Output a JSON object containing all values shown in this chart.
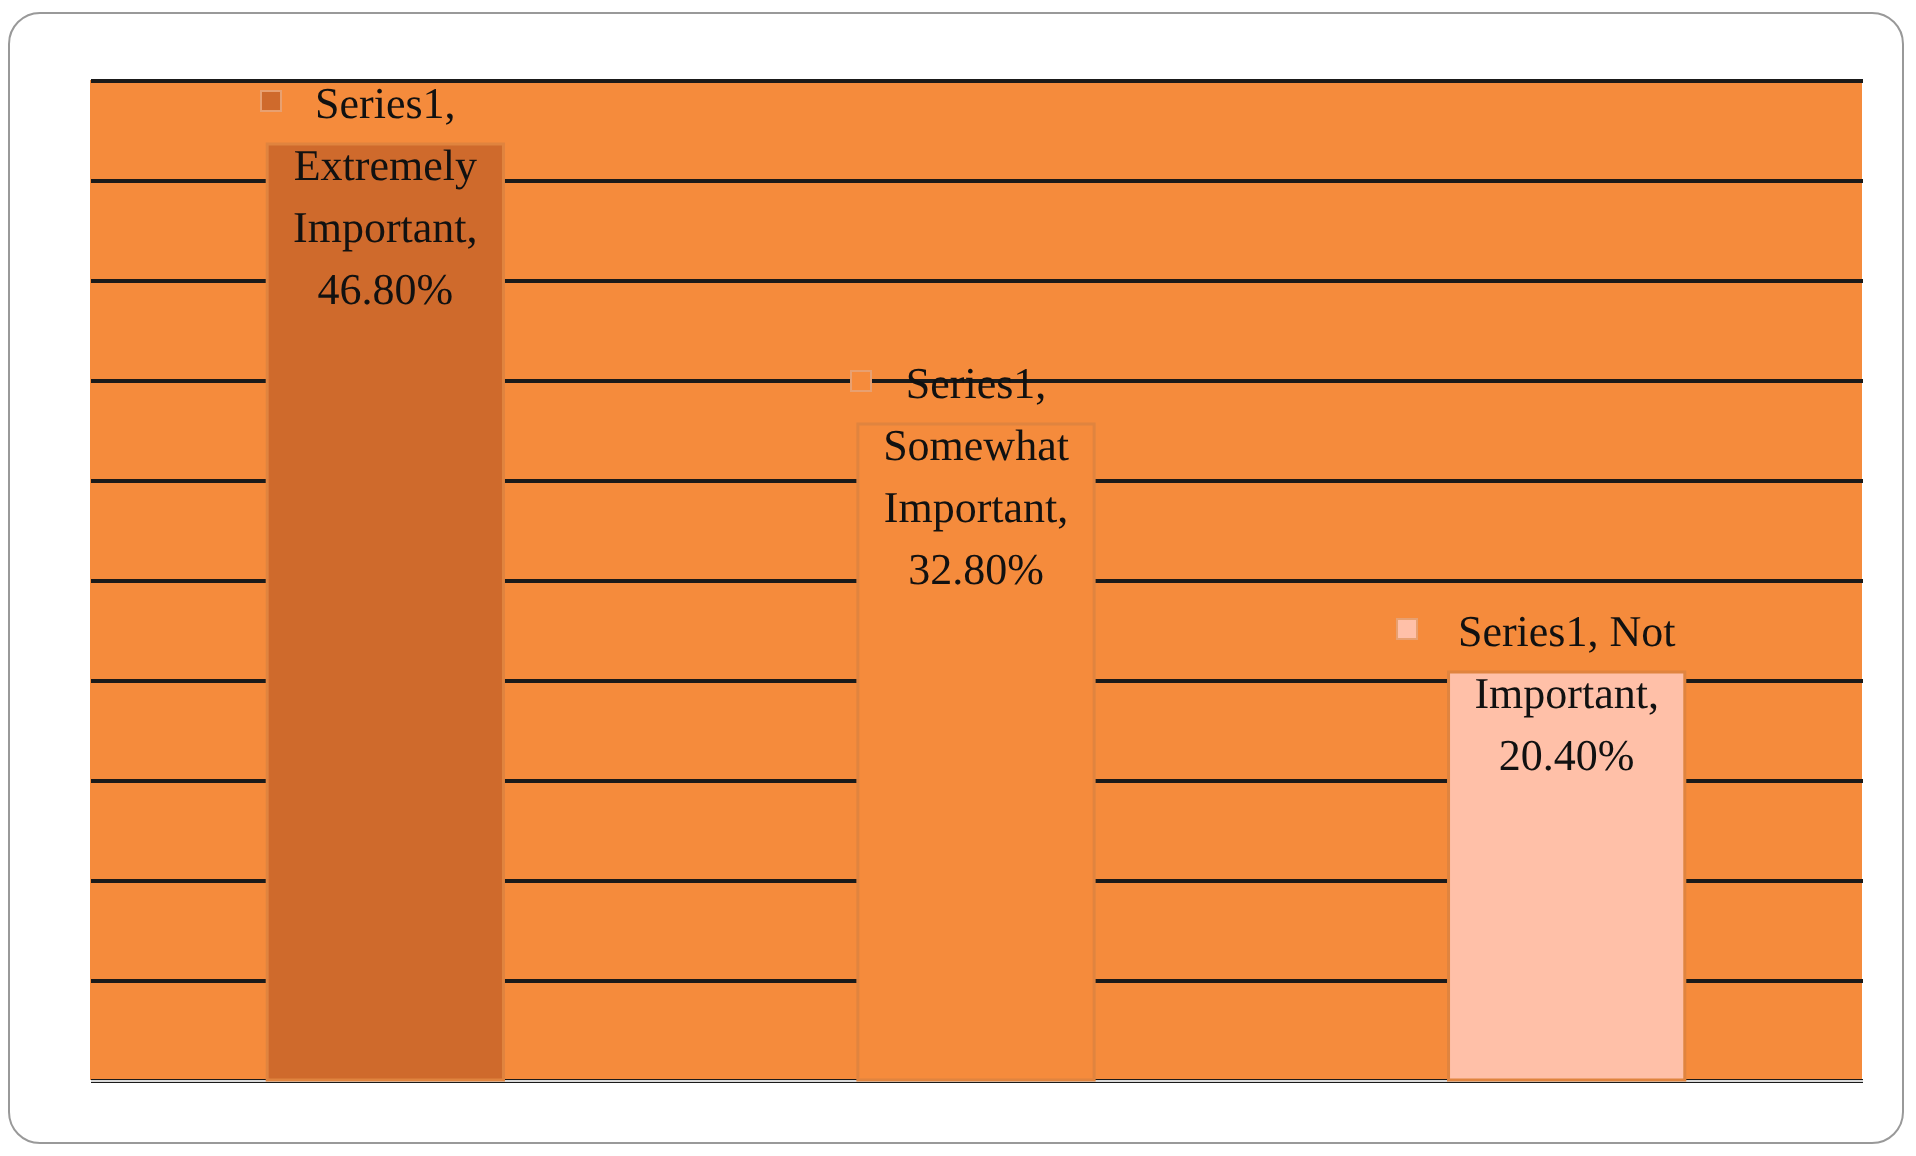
{
  "chart_data": {
    "type": "bar",
    "categories": [
      null,
      null,
      null
    ],
    "series": [
      {
        "values": [
          46.8,
          32.8,
          20.4
        ],
        "colors": [
          "#cf6a2c",
          "#f58b3c",
          "#ffc0a8"
        ],
        "value_labels": [
          "Series1, Extremely Important, 46.80%",
          "Series1, Somewhat Important, 32.80%",
          "Series1, Not Important, 20.40%"
        ]
      }
    ],
    "ylim": [
      0,
      50
    ],
    "yticks": [
      {
        "value": 0,
        "label": null
      },
      {
        "value": 5,
        "label": null
      },
      {
        "value": 10,
        "label": null
      },
      {
        "value": 15,
        "label": null
      },
      {
        "value": 20,
        "label": null
      },
      {
        "value": 25,
        "label": null
      },
      {
        "value": 30,
        "label": null
      },
      {
        "value": 35,
        "label": null
      },
      {
        "value": 40,
        "label": null
      },
      {
        "value": 45,
        "label": null
      },
      {
        "value": 50,
        "label": null
      }
    ],
    "grid": "y",
    "tick_labels": false
  }
}
